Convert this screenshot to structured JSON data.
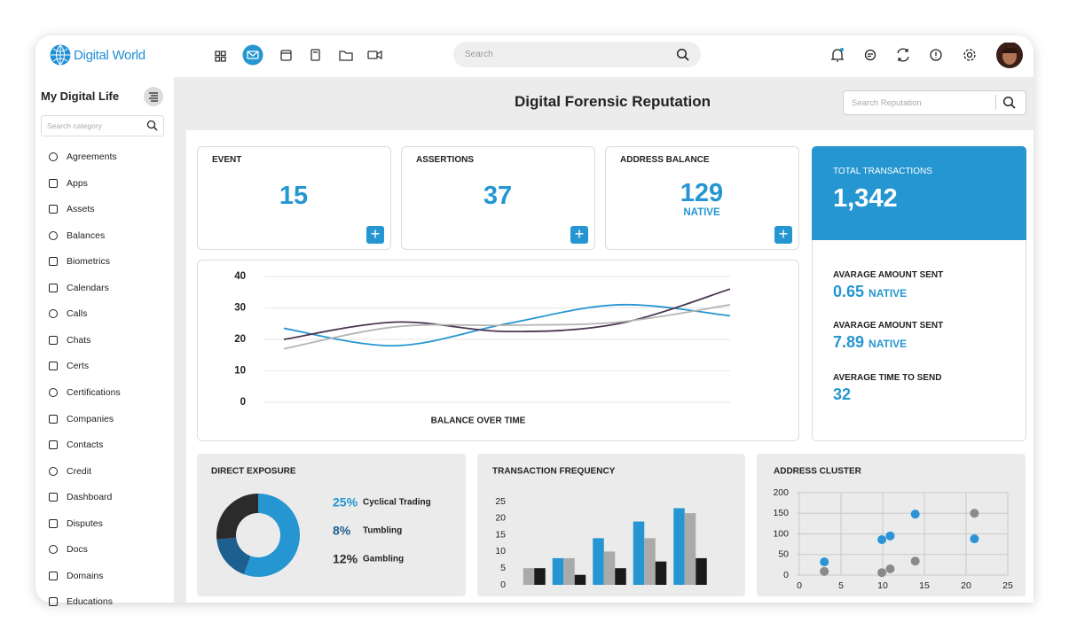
{
  "header": {
    "logo": "Digital World",
    "search": "Search"
  },
  "sidebar": {
    "title": "My Digital Life",
    "search": "Search category",
    "items": [
      "Agreements",
      "Apps",
      "Assets",
      "Balances",
      "Biometrics",
      "Calendars",
      "Calls",
      "Chats",
      "Certs",
      "Certifications",
      "Companies",
      "Contacts",
      "Credit",
      "Dashboard",
      "Disputes",
      "Docs",
      "Domains",
      "Educations"
    ]
  },
  "main": {
    "title": "Digital Forensic Reputation",
    "search": "Search Reputation",
    "stats": [
      {
        "label": "EVENT",
        "value": 15
      },
      {
        "label": "ASSERTIONS",
        "value": 37
      },
      {
        "label": "ADDRESS BALANCE",
        "value": 129,
        "unit": "NATIVE"
      }
    ],
    "total": {
      "label": "TOTAL TRANSACTIONS",
      "value": "1,342",
      "metrics": [
        {
          "label": "AVARAGE AMOUNT SENT",
          "value": 0.65,
          "unit": "NATIVE"
        },
        {
          "label": "AVARAGE AMOUNT SENT",
          "value": 7.89,
          "unit": "NATIVE"
        },
        {
          "label": "AVERAGE TIME TO SEND",
          "value": 32
        }
      ]
    }
  },
  "chart_data": [
    {
      "type": "line",
      "title": "BALANCE OVER TIME",
      "categories": [
        null,
        null,
        null,
        null,
        null
      ],
      "series": [
        {
          "color": "#2596d1",
          "values": [
            23.5,
            18,
            25,
            31,
            27.5
          ]
        },
        {
          "color": "#4a3552",
          "values": [
            20,
            25.5,
            22.5,
            25,
            36
          ]
        },
        {
          "color": "#b5b5b5",
          "values": [
            17,
            24,
            24.5,
            25.5,
            31
          ]
        }
      ],
      "ylim": [
        0,
        40
      ],
      "yticks": [
        0,
        10,
        20,
        30,
        40
      ],
      "grid": true
    },
    {
      "type": "pie",
      "title": "DIRECT EXPOSURE",
      "categories": [
        "Cyclical Trading",
        "Tumbling",
        "Gambling"
      ],
      "values": [
        25,
        8,
        12
      ],
      "value_labels": [
        "25%",
        "8%",
        "12%"
      ],
      "colors": [
        "#2596d1",
        "#1d5f8f",
        "#2b2b2b"
      ]
    },
    {
      "type": "bar",
      "title": "TRANSACTION FREQUENCY",
      "categories": [
        null,
        null,
        null,
        null,
        null
      ],
      "series": [
        {
          "color": "#2596d1",
          "values": [
            0,
            8,
            14,
            19,
            23
          ]
        },
        {
          "color": "#aaaaaa",
          "values": [
            5,
            8,
            10,
            14,
            21.5
          ]
        },
        {
          "color": "#1a1a1a",
          "values": [
            5,
            3,
            5,
            7,
            8
          ]
        }
      ],
      "ylim": [
        0,
        25
      ],
      "yticks": [
        0,
        5,
        10,
        15,
        20,
        25
      ]
    },
    {
      "type": "scatter",
      "title": "ADDRESS CLUSTER",
      "series": [
        {
          "color": "#2b93d6",
          "x": [
            3,
            9.9,
            10.9,
            13.9,
            21
          ],
          "values": [
            32,
            86,
            95,
            148,
            88
          ]
        },
        {
          "color": "#8a8a8a",
          "x": [
            3,
            9.9,
            10.9,
            13.9,
            21
          ],
          "values": [
            9,
            6,
            15,
            34,
            150
          ]
        }
      ],
      "xlim": [
        0,
        25
      ],
      "ylim": [
        0,
        200
      ],
      "xticks": [
        0,
        5,
        10,
        15,
        20,
        25
      ],
      "yticks": [
        0,
        50,
        100,
        150,
        200
      ],
      "grid": true
    }
  ]
}
